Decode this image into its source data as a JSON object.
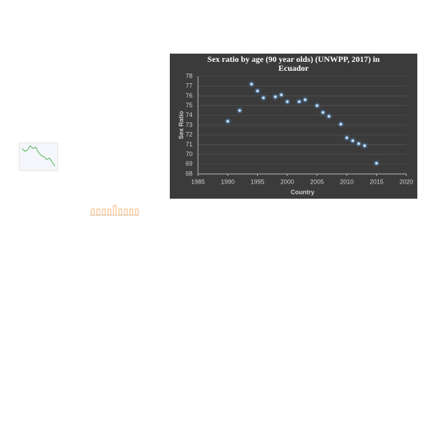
{
  "chart_data": {
    "type": "scatter",
    "title": "Sex ratio by age (90 year olds) (UNWPP, 2017) in Ecuador",
    "x_label": "Country",
    "y_label": "Sex Ratio",
    "series": [
      {
        "name": "Sex ratio",
        "color": "#5b9bd5",
        "x": [
          1990,
          1992,
          1994,
          1995,
          1996,
          1998,
          1999,
          2000,
          2002,
          2003,
          2005,
          2006,
          2007,
          2009,
          2010,
          2011,
          2012,
          2013,
          2015
        ],
        "values": [
          73.4,
          74.5,
          77.2,
          76.5,
          75.8,
          75.9,
          76.1,
          75.4,
          75.4,
          75.6,
          75.0,
          74.3,
          73.9,
          73.1,
          71.7,
          71.4,
          71.1,
          70.9,
          69.1
        ]
      }
    ],
    "xlim": [
      1985,
      2020
    ],
    "xticks": [
      1985,
      1990,
      1995,
      2000,
      2005,
      2010,
      2015,
      2020
    ],
    "ylim": [
      68,
      78
    ],
    "yticks": [
      68,
      69,
      70,
      71,
      72,
      73,
      74,
      75,
      76,
      77,
      78
    ],
    "grid": true
  }
}
